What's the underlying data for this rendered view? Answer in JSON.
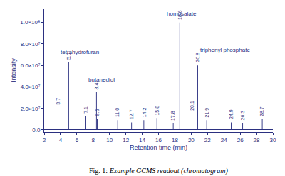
{
  "chart_data": {
    "type": "stem",
    "x": [
      3.7,
      5.0,
      7.1,
      8.4,
      8.5,
      11.0,
      12.7,
      14.2,
      15.8,
      17.8,
      18.6,
      20.1,
      20.8,
      21.9,
      24.9,
      26.3,
      28.7
    ],
    "values": [
      21000000,
      63000000,
      13000000,
      35000000,
      10000000,
      9000000,
      7000000,
      9000000,
      11000000,
      6000000,
      100000000,
      15000000,
      60000000,
      9000000,
      7000000,
      6000000,
      10000000
    ],
    "labels": [
      "3.7",
      "5.0",
      "7.1",
      "8.4",
      "8.5",
      "11.0",
      "12.7",
      "14.2",
      "15.8",
      "17.8",
      "18.6",
      "20.1",
      "20.8",
      "21.9",
      "24.9",
      "26.3",
      "28.7"
    ],
    "annotations": [
      {
        "text": "tetrahydrofuran",
        "x": 3.8,
        "y": 68000000
      },
      {
        "text": "butanediol",
        "x": 7.2,
        "y": 42000000
      },
      {
        "text": "homosalate",
        "x": 16.8,
        "y": 104000000
      },
      {
        "text": "triphenyl phosphate",
        "x": 20.9,
        "y": 70000000
      }
    ],
    "xlabel": "Retention time (min)",
    "ylabel": "Intensity",
    "xlim": [
      2,
      30
    ],
    "ylim": [
      -2000000,
      113000000
    ],
    "xticks": [
      2,
      4,
      6,
      8,
      10,
      12,
      14,
      16,
      18,
      20,
      22,
      24,
      26,
      28,
      30
    ],
    "yticks": [
      {
        "value": 0,
        "label": "0.0"
      },
      {
        "value": 20000000,
        "label": "2.0×10⁷"
      },
      {
        "value": 40000000,
        "label": "4.0×10⁷"
      },
      {
        "value": 60000000,
        "label": "6.0×10⁷"
      },
      {
        "value": 80000000,
        "label": "8.0×10⁷"
      },
      {
        "value": 100000000,
        "label": "1.0×10⁸"
      }
    ],
    "color": "#2b3080",
    "grid": false,
    "caption_prefix": "Fig. 1:",
    "caption": "Example GCMS readout (chromatogram)"
  }
}
